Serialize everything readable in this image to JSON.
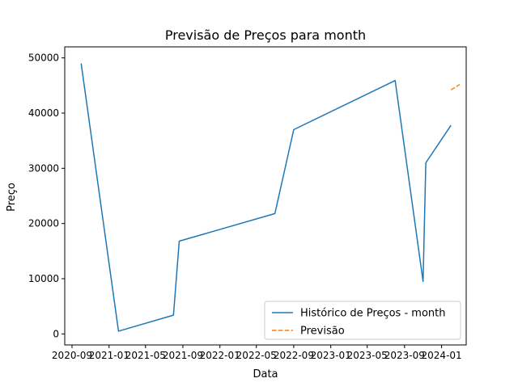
{
  "chart_data": {
    "type": "line",
    "title": "Previsão de Preços para month",
    "xlabel": "Data",
    "ylabel": "Preço",
    "x_axis_type": "date",
    "xlim": [
      "2020-08-08",
      "2024-03-22"
    ],
    "ylim": [
      -2000,
      52000
    ],
    "x_ticks": [
      {
        "date": "2020-09-01",
        "label": "2020-09"
      },
      {
        "date": "2021-01-01",
        "label": "2021-01"
      },
      {
        "date": "2021-05-01",
        "label": "2021-05"
      },
      {
        "date": "2021-09-01",
        "label": "2021-09"
      },
      {
        "date": "2022-01-01",
        "label": "2022-01"
      },
      {
        "date": "2022-05-01",
        "label": "2022-05"
      },
      {
        "date": "2022-09-01",
        "label": "2022-09"
      },
      {
        "date": "2023-01-01",
        "label": "2023-01"
      },
      {
        "date": "2023-05-01",
        "label": "2023-05"
      },
      {
        "date": "2023-09-01",
        "label": "2023-09"
      },
      {
        "date": "2024-01-01",
        "label": "2024-01"
      }
    ],
    "y_ticks": [
      0,
      10000,
      20000,
      30000,
      40000,
      50000
    ],
    "grid": false,
    "legend_position": "bottom-right",
    "series": [
      {
        "name": "Histórico de Preços - month",
        "color": "#1f77b4",
        "style": "solid",
        "points": [
          {
            "x": "2020-10-01",
            "y": 49000
          },
          {
            "x": "2021-02-01",
            "y": 500
          },
          {
            "x": "2021-08-01",
            "y": 3400
          },
          {
            "x": "2021-08-20",
            "y": 16800
          },
          {
            "x": "2022-07-01",
            "y": 21800
          },
          {
            "x": "2022-09-01",
            "y": 37000
          },
          {
            "x": "2023-08-01",
            "y": 45900
          },
          {
            "x": "2023-11-01",
            "y": 9500
          },
          {
            "x": "2023-11-10",
            "y": 31000
          },
          {
            "x": "2024-02-01",
            "y": 37800
          }
        ]
      },
      {
        "name": "Previsão",
        "color": "#ff7f0e",
        "style": "dashed",
        "points": [
          {
            "x": "2024-02-01",
            "y": 44200
          },
          {
            "x": "2024-03-01",
            "y": 45200
          }
        ]
      }
    ]
  }
}
